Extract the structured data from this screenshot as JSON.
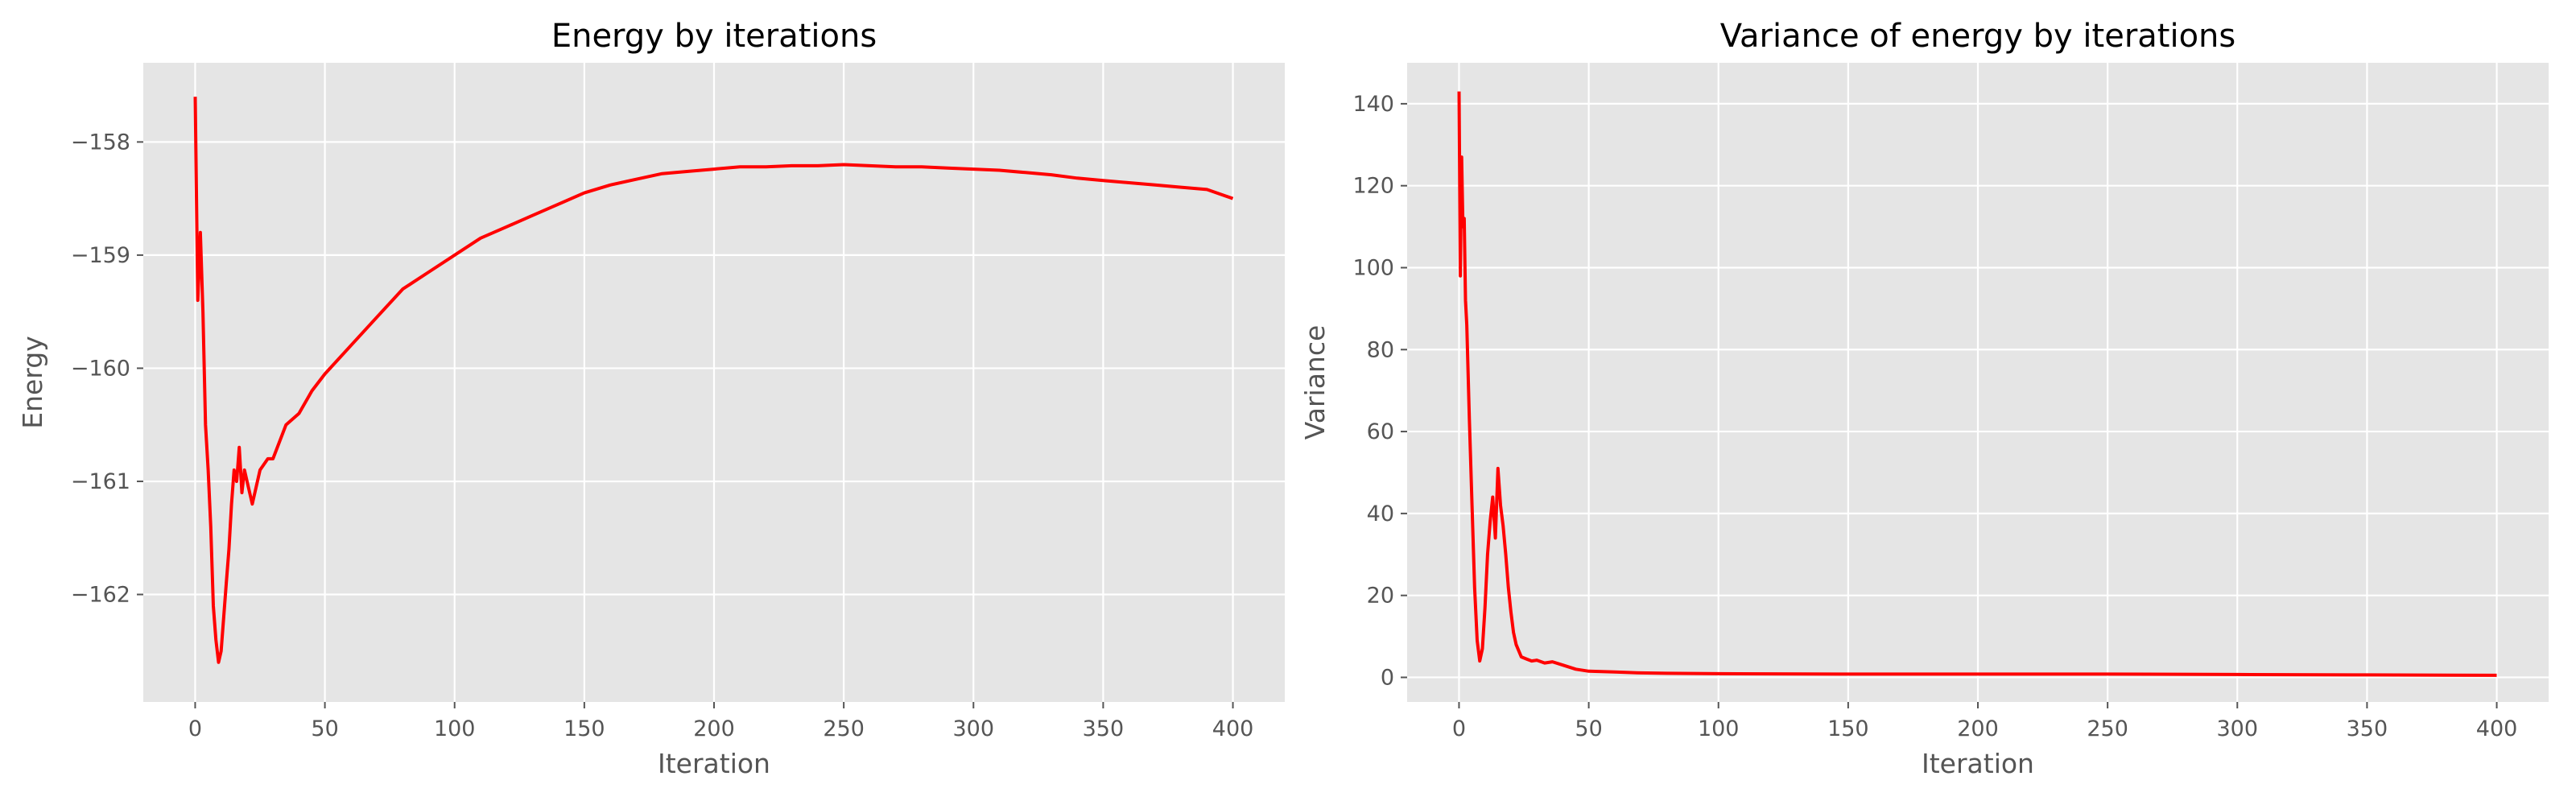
{
  "chart_data": [
    {
      "type": "line",
      "title": "Energy by iterations",
      "xlabel": "Iteration",
      "ylabel": "Energy",
      "xlim": [
        -20,
        420
      ],
      "ylim": [
        -162.95,
        -157.3
      ],
      "xticks": [
        0,
        50,
        100,
        150,
        200,
        250,
        300,
        350,
        400
      ],
      "yticks": [
        -162,
        -161,
        -160,
        -159,
        -158
      ],
      "grid": true,
      "color": "#ff0000",
      "series": [
        {
          "x": [
            0,
            1,
            2,
            3,
            4,
            5,
            6,
            7,
            8,
            9,
            10,
            11,
            12,
            13,
            14,
            15,
            16,
            17,
            18,
            19,
            20,
            22,
            25,
            28,
            30,
            35,
            40,
            45,
            50,
            60,
            70,
            80,
            90,
            100,
            110,
            120,
            130,
            140,
            150,
            160,
            170,
            180,
            190,
            200,
            210,
            220,
            230,
            240,
            250,
            260,
            270,
            280,
            290,
            300,
            310,
            320,
            330,
            340,
            350,
            360,
            370,
            380,
            390,
            400
          ],
          "y": [
            -157.6,
            -159.4,
            -158.8,
            -159.5,
            -160.5,
            -160.9,
            -161.4,
            -162.1,
            -162.4,
            -162.6,
            -162.5,
            -162.2,
            -161.9,
            -161.6,
            -161.2,
            -160.9,
            -161.0,
            -160.7,
            -161.1,
            -160.9,
            -161.0,
            -161.2,
            -160.9,
            -160.8,
            -160.8,
            -160.5,
            -160.4,
            -160.2,
            -160.05,
            -159.8,
            -159.55,
            -159.3,
            -159.15,
            -159.0,
            -158.85,
            -158.75,
            -158.65,
            -158.55,
            -158.45,
            -158.38,
            -158.33,
            -158.28,
            -158.26,
            -158.24,
            -158.22,
            -158.22,
            -158.21,
            -158.21,
            -158.2,
            -158.21,
            -158.22,
            -158.22,
            -158.23,
            -158.24,
            -158.25,
            -158.27,
            -158.29,
            -158.32,
            -158.34,
            -158.36,
            -158.38,
            -158.4,
            -158.42,
            -158.5
          ]
        }
      ]
    },
    {
      "type": "line",
      "title": "Variance of energy by iterations",
      "xlabel": "Iteration",
      "ylabel": "Variance",
      "xlim": [
        -20,
        420
      ],
      "ylim": [
        -6,
        150
      ],
      "xticks": [
        0,
        50,
        100,
        150,
        200,
        250,
        300,
        350,
        400
      ],
      "yticks": [
        0,
        20,
        40,
        60,
        80,
        100,
        120,
        140
      ],
      "grid": true,
      "color": "#ff0000",
      "series": [
        {
          "x": [
            0,
            0.5,
            1,
            1.5,
            2,
            2.5,
            3,
            4,
            5,
            6,
            7,
            8,
            9,
            10,
            11,
            12,
            13,
            14,
            15,
            16,
            17,
            18,
            19,
            20,
            21,
            22,
            24,
            26,
            28,
            30,
            33,
            36,
            40,
            45,
            50,
            60,
            70,
            80,
            100,
            150,
            200,
            250,
            300,
            350,
            400
          ],
          "y": [
            143,
            98,
            127,
            110,
            112,
            92,
            86,
            63,
            42,
            22,
            9,
            4,
            7,
            17,
            30,
            38,
            44,
            34,
            51,
            42,
            37,
            30,
            22,
            16,
            11,
            8,
            5,
            4.5,
            4,
            4.2,
            3.5,
            3.8,
            3,
            2,
            1.5,
            1.3,
            1.1,
            1.0,
            0.9,
            0.8,
            0.8,
            0.8,
            0.7,
            0.6,
            0.5
          ]
        }
      ]
    }
  ]
}
